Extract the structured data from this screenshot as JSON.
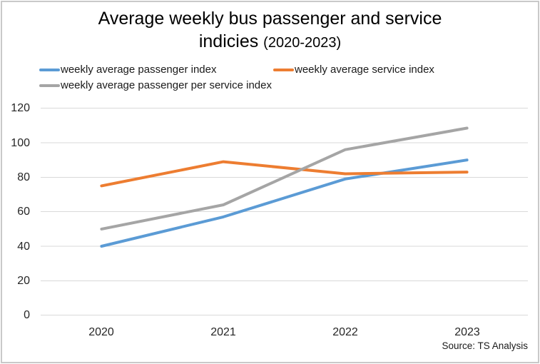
{
  "window": {
    "background": "#FFFFFF",
    "border_color": "#C9C9C9"
  },
  "chart_data": {
    "type": "line",
    "title": {
      "line1": "Average weekly bus passenger and service",
      "line2_main": "indicies",
      "line2_suffix": "(2020-2023)"
    },
    "categories": [
      "2020",
      "2021",
      "2022",
      "2023"
    ],
    "series": [
      {
        "name": "weekly average passenger index",
        "color": "#5B9BD5",
        "values": [
          40,
          57,
          79,
          90
        ]
      },
      {
        "name": "weekly average service index",
        "color": "#ED7D31",
        "values": [
          75,
          89,
          82,
          83
        ]
      },
      {
        "name": "weekly average passenger per service index",
        "color": "#A5A5A5",
        "values": [
          50,
          64,
          96,
          108.5
        ]
      }
    ],
    "xlabel": "",
    "ylabel": "",
    "ylim": [
      0,
      120
    ],
    "yticks": [
      0,
      20,
      40,
      60,
      80,
      100,
      120
    ],
    "grid": true,
    "gridline_color": "#D9D9D9",
    "legend_position": "top-left",
    "source": "Source: TS Analysis"
  }
}
